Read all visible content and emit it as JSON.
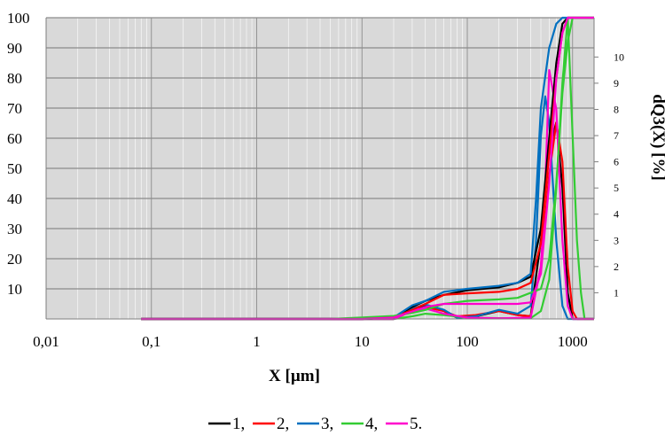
{
  "chart_data": {
    "type": "line",
    "xlabel": "X [µm]",
    "ylabel_right": "dQ3(X) [%]",
    "x_scale": "log",
    "xlim": [
      0.01,
      1600
    ],
    "ylim": [
      0,
      100
    ],
    "y2lim": [
      0,
      11.5
    ],
    "x_ticks": [
      0.01,
      0.1,
      1,
      10,
      100,
      1000
    ],
    "x_tick_labels": [
      "0,01",
      "0,1",
      "1",
      "10",
      "100",
      "1000"
    ],
    "y_ticks": [
      10,
      20,
      30,
      40,
      50,
      60,
      70,
      80,
      90,
      100
    ],
    "y_tick_labels": [
      "10",
      "20",
      "30",
      "40",
      "50",
      "60",
      "70",
      "80",
      "90",
      "100"
    ],
    "y2_ticks": [
      1,
      2,
      3,
      4,
      5,
      6,
      7,
      8,
      9,
      10
    ],
    "y2_tick_labels": [
      "1",
      "2",
      "3",
      "4",
      "5",
      "6",
      "7",
      "8",
      "9",
      "10"
    ],
    "grid": true,
    "background": "#d9d9d9",
    "legend_position": "bottom",
    "legend_label_suffix": [
      ",",
      ",",
      ",",
      ",",
      "."
    ],
    "series": [
      {
        "name": "1",
        "color": "#000000",
        "cumulative": [
          [
            0.08,
            0
          ],
          [
            10,
            0
          ],
          [
            20,
            0.5
          ],
          [
            30,
            4
          ],
          [
            40,
            6
          ],
          [
            60,
            8
          ],
          [
            100,
            9.5
          ],
          [
            200,
            10.5
          ],
          [
            300,
            12
          ],
          [
            400,
            14
          ],
          [
            500,
            30
          ],
          [
            600,
            60
          ],
          [
            700,
            85
          ],
          [
            800,
            98
          ],
          [
            900,
            100
          ],
          [
            1600,
            100
          ]
        ],
        "density": [
          [
            0.08,
            0
          ],
          [
            20,
            0
          ],
          [
            30,
            0.4
          ],
          [
            40,
            0.5
          ],
          [
            60,
            0.3
          ],
          [
            80,
            0.05
          ],
          [
            120,
            0.1
          ],
          [
            200,
            0.3
          ],
          [
            300,
            0.15
          ],
          [
            400,
            0.1
          ],
          [
            500,
            3
          ],
          [
            600,
            6.5
          ],
          [
            700,
            7.5
          ],
          [
            800,
            5
          ],
          [
            900,
            1
          ],
          [
            1000,
            0
          ],
          [
            1600,
            0
          ]
        ]
      },
      {
        "name": "2",
        "color": "#ff0000",
        "cumulative": [
          [
            0.08,
            0
          ],
          [
            10,
            0
          ],
          [
            20,
            0.5
          ],
          [
            30,
            3
          ],
          [
            40,
            5
          ],
          [
            60,
            8
          ],
          [
            100,
            8.5
          ],
          [
            200,
            9
          ],
          [
            300,
            10
          ],
          [
            400,
            12
          ],
          [
            500,
            25
          ],
          [
            600,
            55
          ],
          [
            700,
            80
          ],
          [
            800,
            95
          ],
          [
            900,
            100
          ],
          [
            1600,
            100
          ]
        ],
        "density": [
          [
            0.08,
            0
          ],
          [
            20,
            0
          ],
          [
            30,
            0.3
          ],
          [
            40,
            0.45
          ],
          [
            60,
            0.3
          ],
          [
            80,
            0.1
          ],
          [
            120,
            0.15
          ],
          [
            200,
            0.3
          ],
          [
            300,
            0.15
          ],
          [
            400,
            0.1
          ],
          [
            500,
            2
          ],
          [
            600,
            5.5
          ],
          [
            700,
            7.5
          ],
          [
            800,
            6
          ],
          [
            900,
            2
          ],
          [
            1000,
            0.3
          ],
          [
            1100,
            0
          ],
          [
            1600,
            0
          ]
        ]
      },
      {
        "name": "3",
        "color": "#0070c0",
        "cumulative": [
          [
            0.08,
            0
          ],
          [
            10,
            0
          ],
          [
            20,
            0.5
          ],
          [
            30,
            4.5
          ],
          [
            40,
            6
          ],
          [
            60,
            9
          ],
          [
            100,
            10
          ],
          [
            200,
            11
          ],
          [
            300,
            12
          ],
          [
            400,
            15
          ],
          [
            450,
            40
          ],
          [
            500,
            70
          ],
          [
            600,
            90
          ],
          [
            700,
            98
          ],
          [
            800,
            100
          ],
          [
            1600,
            100
          ]
        ],
        "density": [
          [
            0.08,
            0
          ],
          [
            20,
            0
          ],
          [
            30,
            0.4
          ],
          [
            40,
            0.55
          ],
          [
            60,
            0.35
          ],
          [
            80,
            0.05
          ],
          [
            120,
            0.1
          ],
          [
            200,
            0.35
          ],
          [
            300,
            0.2
          ],
          [
            400,
            0.5
          ],
          [
            450,
            3
          ],
          [
            500,
            7
          ],
          [
            550,
            8.5
          ],
          [
            600,
            7.5
          ],
          [
            700,
            3
          ],
          [
            800,
            0.5
          ],
          [
            900,
            0
          ],
          [
            1600,
            0
          ]
        ]
      },
      {
        "name": "4",
        "color": "#33cc33",
        "cumulative": [
          [
            0.08,
            0
          ],
          [
            5,
            0
          ],
          [
            10,
            0.5
          ],
          [
            20,
            1
          ],
          [
            30,
            2
          ],
          [
            40,
            3
          ],
          [
            60,
            5
          ],
          [
            100,
            6
          ],
          [
            200,
            6.5
          ],
          [
            300,
            7
          ],
          [
            500,
            10
          ],
          [
            600,
            20
          ],
          [
            700,
            45
          ],
          [
            800,
            75
          ],
          [
            900,
            92
          ],
          [
            1000,
            100
          ],
          [
            1600,
            100
          ]
        ],
        "density": [
          [
            0.08,
            0
          ],
          [
            20,
            0
          ],
          [
            30,
            0.1
          ],
          [
            40,
            0.2
          ],
          [
            60,
            0.15
          ],
          [
            100,
            0.05
          ],
          [
            200,
            0.03
          ],
          [
            400,
            0.03
          ],
          [
            500,
            0.3
          ],
          [
            600,
            1.5
          ],
          [
            700,
            5
          ],
          [
            800,
            9
          ],
          [
            900,
            11.5
          ],
          [
            1000,
            7
          ],
          [
            1100,
            3
          ],
          [
            1200,
            1
          ],
          [
            1300,
            0
          ],
          [
            1600,
            0
          ]
        ]
      },
      {
        "name": "5",
        "color": "#ff00cc",
        "cumulative": [
          [
            0.08,
            0
          ],
          [
            10,
            0
          ],
          [
            20,
            0.5
          ],
          [
            30,
            2.5
          ],
          [
            40,
            4
          ],
          [
            60,
            5
          ],
          [
            100,
            5
          ],
          [
            200,
            5
          ],
          [
            300,
            5
          ],
          [
            400,
            5.5
          ],
          [
            500,
            15
          ],
          [
            600,
            45
          ],
          [
            700,
            80
          ],
          [
            800,
            95
          ],
          [
            900,
            100
          ],
          [
            1600,
            100
          ]
        ],
        "density": [
          [
            0.08,
            0
          ],
          [
            20,
            0
          ],
          [
            30,
            0.3
          ],
          [
            40,
            0.4
          ],
          [
            60,
            0.2
          ],
          [
            100,
            0.05
          ],
          [
            200,
            0.02
          ],
          [
            400,
            0.05
          ],
          [
            500,
            2
          ],
          [
            550,
            5
          ],
          [
            600,
            9.5
          ],
          [
            700,
            8
          ],
          [
            800,
            3
          ],
          [
            900,
            0.5
          ],
          [
            1000,
            0
          ],
          [
            1600,
            0
          ]
        ]
      }
    ]
  }
}
